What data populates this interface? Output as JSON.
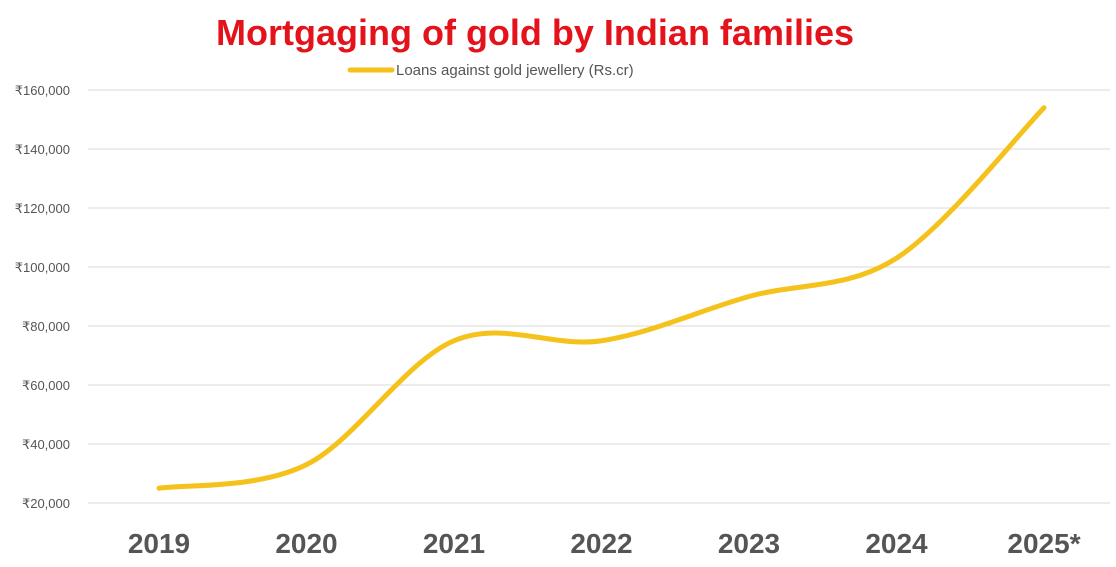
{
  "chart_data": {
    "type": "line",
    "title": "Mortgaging of gold by Indian families",
    "categories": [
      "2019",
      "2020",
      "2021",
      "2022",
      "2023",
      "2024",
      "2025*"
    ],
    "series": [
      {
        "name": "Loans against gold jewellery (Rs.cr)",
        "values": [
          25000,
          33000,
          75000,
          75000,
          90000,
          103000,
          154000
        ],
        "color": "#f5c21b"
      }
    ],
    "yticks": [
      "₹20,000",
      "₹40,000",
      "₹60,000",
      "₹80,000",
      "₹100,000",
      "₹120,000",
      "₹140,000",
      "₹160,000"
    ],
    "ytick_values": [
      20000,
      40000,
      60000,
      80000,
      100000,
      120000,
      140000,
      160000
    ],
    "ylim": [
      20000,
      160000
    ],
    "grid": true,
    "legend_position": "top",
    "smooth": true,
    "xlabel": "",
    "ylabel": ""
  },
  "colors": {
    "title": "#e4121b",
    "line": "#f5c21b",
    "grid": "#d9d9d9",
    "text": "#555555"
  }
}
